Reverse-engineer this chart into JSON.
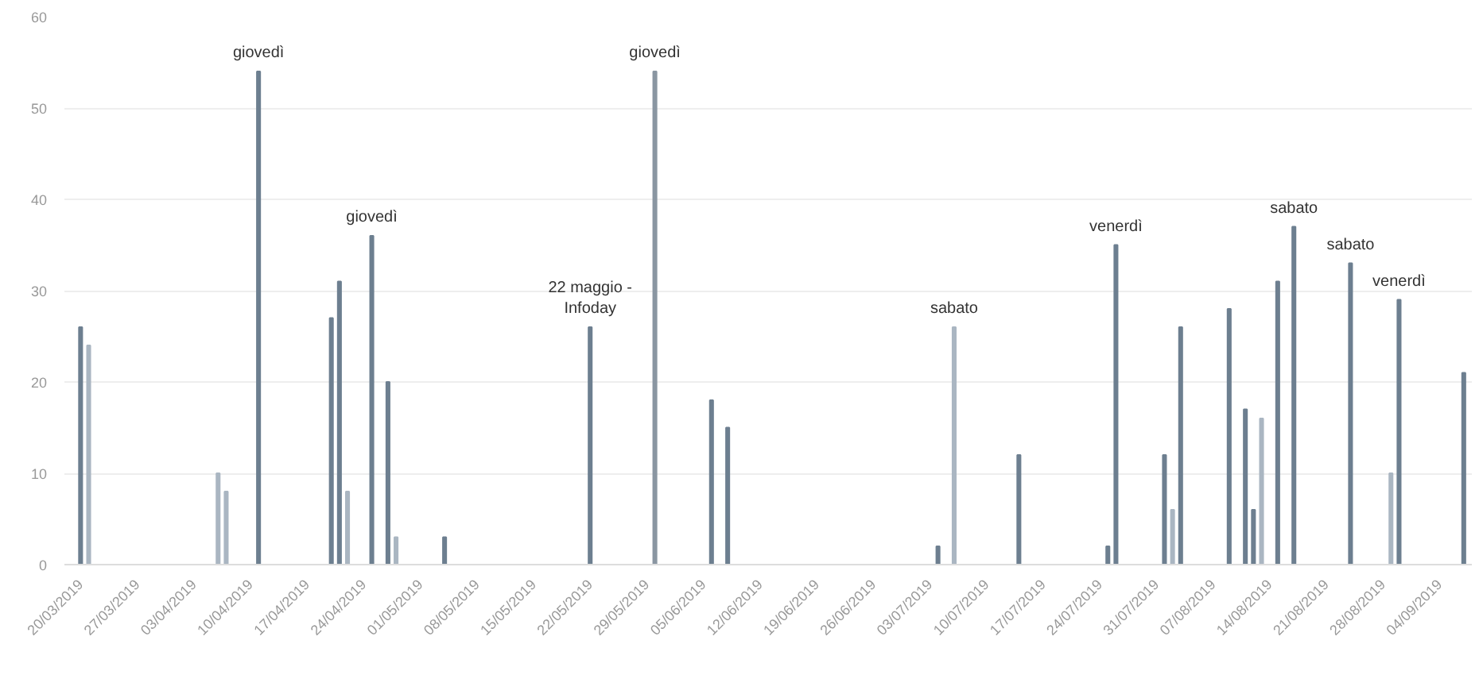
{
  "chart_data": {
    "type": "bar",
    "x": [
      "2019-03-20",
      "2019-03-21",
      "2019-04-06",
      "2019-04-07",
      "2019-04-11",
      "2019-04-20",
      "2019-04-21",
      "2019-04-22",
      "2019-04-25",
      "2019-04-27",
      "2019-04-28",
      "2019-05-04",
      "2019-05-22",
      "2019-05-30",
      "2019-06-06",
      "2019-06-08",
      "2019-07-04",
      "2019-07-06",
      "2019-07-14",
      "2019-07-25",
      "2019-07-26",
      "2019-08-01",
      "2019-08-02",
      "2019-08-03",
      "2019-08-09",
      "2019-08-11",
      "2019-08-12",
      "2019-08-13",
      "2019-08-15",
      "2019-08-17",
      "2019-08-24",
      "2019-08-29",
      "2019-08-30",
      "2019-09-07"
    ],
    "values": [
      26,
      24,
      10,
      8,
      54,
      27,
      31,
      8,
      36,
      20,
      3,
      3,
      26,
      54,
      18,
      15,
      2,
      26,
      12,
      2,
      35,
      12,
      6,
      26,
      28,
      17,
      6,
      16,
      31,
      37,
      33,
      10,
      29,
      21
    ],
    "colors": [
      "#6d7f90",
      "#aab6c2",
      "#aab6c2",
      "#aab6c2",
      "#6d7f90",
      "#6d7f90",
      "#6d7f90",
      "#aab6c2",
      "#6d7f90",
      "#6d7f90",
      "#aab6c2",
      "#6d7f90",
      "#6d7f90",
      "#8a96a2",
      "#6d7f90",
      "#6d7f90",
      "#6d7f90",
      "#aab6c2",
      "#6d7f90",
      "#6d7f90",
      "#6d7f90",
      "#6d7f90",
      "#aab6c2",
      "#6d7f90",
      "#6d7f90",
      "#6d7f90",
      "#6d7f90",
      "#aab6c2",
      "#6d7f90",
      "#6d7f90",
      "#6d7f90",
      "#aab6c2",
      "#6d7f90",
      "#6d7f90"
    ],
    "xlim": [
      "2019-03-18",
      "2019-09-08"
    ],
    "xticks": [
      {
        "value": "2019-03-20",
        "label": "20/03/2019"
      },
      {
        "value": "2019-03-27",
        "label": "27/03/2019"
      },
      {
        "value": "2019-04-03",
        "label": "03/04/2019"
      },
      {
        "value": "2019-04-10",
        "label": "10/04/2019"
      },
      {
        "value": "2019-04-17",
        "label": "17/04/2019"
      },
      {
        "value": "2019-04-24",
        "label": "24/04/2019"
      },
      {
        "value": "2019-05-01",
        "label": "01/05/2019"
      },
      {
        "value": "2019-05-08",
        "label": "08/05/2019"
      },
      {
        "value": "2019-05-15",
        "label": "15/05/2019"
      },
      {
        "value": "2019-05-22",
        "label": "22/05/2019"
      },
      {
        "value": "2019-05-29",
        "label": "29/05/2019"
      },
      {
        "value": "2019-06-05",
        "label": "05/06/2019"
      },
      {
        "value": "2019-06-12",
        "label": "12/06/2019"
      },
      {
        "value": "2019-06-19",
        "label": "19/06/2019"
      },
      {
        "value": "2019-06-26",
        "label": "26/06/2019"
      },
      {
        "value": "2019-07-03",
        "label": "03/07/2019"
      },
      {
        "value": "2019-07-10",
        "label": "10/07/2019"
      },
      {
        "value": "2019-07-17",
        "label": "17/07/2019"
      },
      {
        "value": "2019-07-24",
        "label": "24/07/2019"
      },
      {
        "value": "2019-07-31",
        "label": "31/07/2019"
      },
      {
        "value": "2019-08-07",
        "label": "07/08/2019"
      },
      {
        "value": "2019-08-14",
        "label": "14/08/2019"
      },
      {
        "value": "2019-08-21",
        "label": "21/08/2019"
      },
      {
        "value": "2019-08-28",
        "label": "28/08/2019"
      },
      {
        "value": "2019-09-04",
        "label": "04/09/2019"
      }
    ],
    "ylim": [
      0,
      60
    ],
    "yticks": [
      0,
      10,
      20,
      30,
      40,
      50,
      60
    ],
    "grid": "y",
    "annotations": [
      {
        "text": "giovedì",
        "x": "2019-04-11",
        "y": 54
      },
      {
        "text": "giovedì",
        "x": "2019-04-25",
        "y": 36
      },
      {
        "text": "22 maggio -\nInfoday",
        "x": "2019-05-22",
        "y": 26
      },
      {
        "text": "giovedì",
        "x": "2019-05-30",
        "y": 54
      },
      {
        "text": "sabato",
        "x": "2019-07-06",
        "y": 26
      },
      {
        "text": "venerdì",
        "x": "2019-07-26",
        "y": 35
      },
      {
        "text": "sabato",
        "x": "2019-08-17",
        "y": 37
      },
      {
        "text": "sabato",
        "x": "2019-08-24",
        "y": 33
      },
      {
        "text": "venerdì",
        "x": "2019-08-30",
        "y": 29
      }
    ]
  }
}
